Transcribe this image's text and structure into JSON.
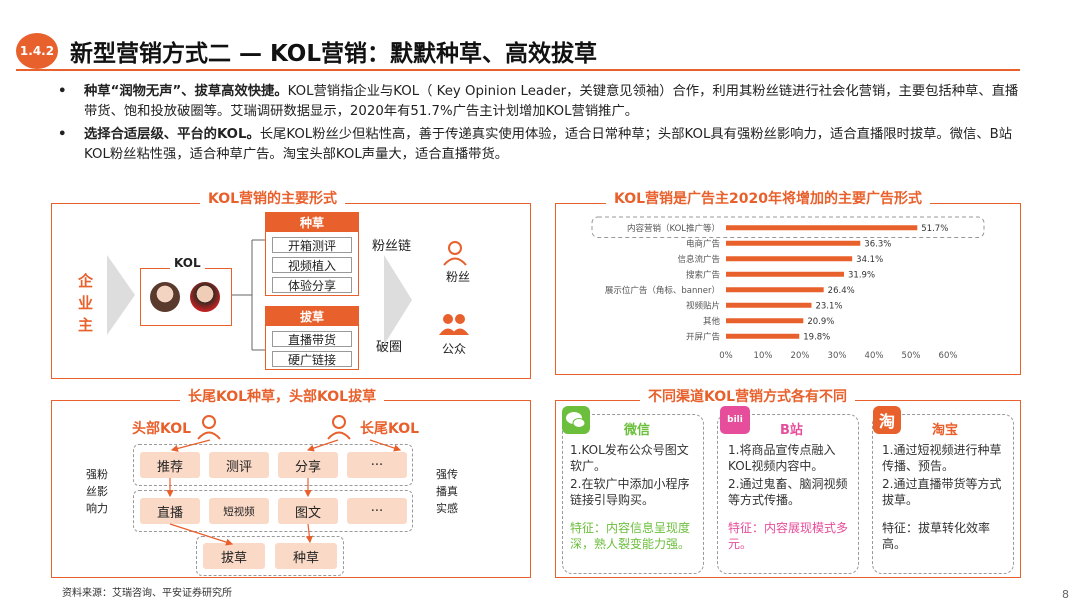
{
  "header": {
    "section": "1.4.2",
    "title": "新型营销方式二 — KOL营销：默默种草、高效拔草"
  },
  "bullets": [
    {
      "bold": "种草“润物无声”、拔草高效快捷。",
      "text": "KOL营销指企业与KOL（ Key Opinion Leader，关键意见领袖）合作，利用其粉丝链进行社会化营销，主要包括种草、直播带货、饱和投放破圈等。艾瑞调研数据显示，2020年有51.7%广告主计划增加KOL营销推广。"
    },
    {
      "bold": "选择合适层级、平台的KOL。",
      "text": "长尾KOL粉丝少但粘性高，善于传递真实使用体验，适合日常种草；头部KOL具有强粉丝影响力，适合直播限时拔草。微信、B站KOL粉丝粘性强，适合种草广告。淘宝头部KOL声量大，适合直播带货。"
    }
  ],
  "forms_panel": {
    "title": "KOL营销的主要形式",
    "enterprise": "企业主",
    "kol_label": "KOL",
    "grass_title": "种草",
    "grass_items": [
      "开箱测评",
      "视频植入",
      "体验分享"
    ],
    "pull_title": "拔草",
    "pull_items": [
      "直播带货",
      "硬广链接"
    ],
    "fan_chain": "粉丝链",
    "break_circle": "破圈",
    "fans": "粉丝",
    "public": "公众"
  },
  "chart_panel": {
    "title": "KOL营销是广告主2020年将增加的主要广告形式"
  },
  "chart_data": {
    "type": "bar",
    "orientation": "horizontal",
    "categories": [
      "内容营销（KOL推广等）",
      "电商广告",
      "信息流广告",
      "搜索广告",
      "展示位广告（角标、banner）",
      "视频贴片",
      "其他",
      "开屏广告"
    ],
    "values": [
      51.7,
      36.3,
      34.1,
      31.9,
      26.4,
      23.1,
      20.9,
      19.8
    ],
    "value_labels": [
      "51.7%",
      "36.3%",
      "34.1%",
      "31.9%",
      "26.4%",
      "23.1%",
      "20.9%",
      "19.8%"
    ],
    "x_ticks": [
      "0%",
      "10%",
      "20%",
      "30%",
      "40%",
      "50%",
      "60%"
    ],
    "xlim": [
      0,
      60
    ],
    "bar_color": "#e8602c"
  },
  "longtail_panel": {
    "title": "长尾KOL种草，头部KOL拔草",
    "head_kol": "头部KOL",
    "longtail_kol": "长尾KOL",
    "left_note": "强粉丝影响力",
    "right_note": "强传播真实感",
    "row1": [
      "推荐",
      "测评",
      "分享",
      "···"
    ],
    "row2": [
      "直播",
      "短视频",
      "图文",
      "···"
    ],
    "row3": [
      "拔草",
      "种草"
    ]
  },
  "channel_panel": {
    "title": "不同渠道KOL营销方式各有不同",
    "channels": [
      {
        "name": "微信",
        "icon": "wechat-icon",
        "lines": [
          "1.KOL发布公众号图文软广。",
          "2.在软广中添加小程序链接引导购买。"
        ],
        "feature": "特征：内容信息呈现度深，熟人裂变能力强。",
        "color": "#6cbf3c"
      },
      {
        "name": "B站",
        "icon": "bilibili-icon",
        "lines": [
          "1.将商品宣传点融入KOL视频内容中。",
          "2.通过鬼畜、脑洞视频等方式传播。"
        ],
        "feature": "特征：内容展现模式多元。",
        "color": "#e64d9a"
      },
      {
        "name": "淘宝",
        "icon": "taobao-icon",
        "lines": [
          "1.通过短视频进行种草传播、预告。",
          "2.通过直播带货等方式拔草。"
        ],
        "feature": "特征：拔草转化效率高。",
        "color": "#e8602c"
      }
    ]
  },
  "footer": {
    "source": "资料来源：艾瑞咨询、平安证券研究所",
    "page": "8"
  }
}
